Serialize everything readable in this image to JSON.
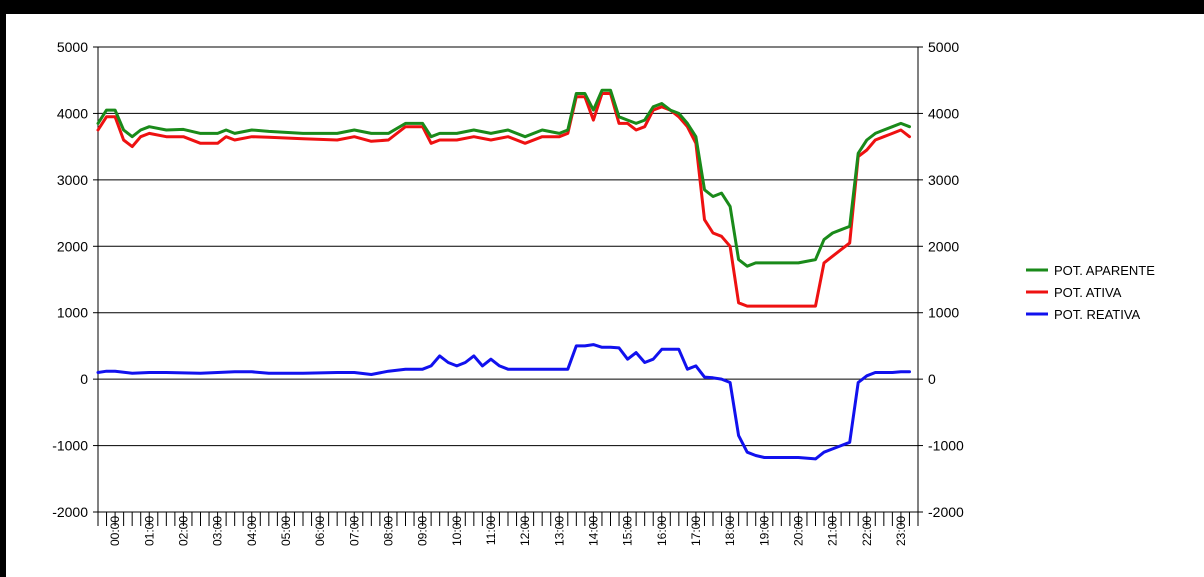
{
  "chart_data": {
    "type": "line",
    "title": "",
    "xlabel": "",
    "ylabel": "",
    "ylim": [
      -2000,
      5000
    ],
    "yticks": [
      -2000,
      -1000,
      0,
      1000,
      2000,
      3000,
      4000,
      5000
    ],
    "xlim": [
      0,
      24
    ],
    "xtick_labels": [
      "00:00",
      "01:00",
      "02:00",
      "03:00",
      "04:00",
      "05:00",
      "06:00",
      "07:00",
      "08:00",
      "09:00",
      "10:00",
      "11:00",
      "12:00",
      "13:00",
      "14:00",
      "15:00",
      "16:00",
      "17:00",
      "18:00",
      "19:00",
      "20:00",
      "21:00",
      "22:00",
      "23:00"
    ],
    "grid": "horizontal",
    "dual_y_axis": true,
    "legend_position": "right",
    "series": [
      {
        "name": "POT. APARENTE",
        "color": "#1a8a1a",
        "x": [
          0,
          0.25,
          0.5,
          0.75,
          1.0,
          1.25,
          1.5,
          2.0,
          2.5,
          3.0,
          3.5,
          3.75,
          4.0,
          4.5,
          5.0,
          6.0,
          7.0,
          7.5,
          8.0,
          8.5,
          9.0,
          9.25,
          9.5,
          9.75,
          10.0,
          10.5,
          11.0,
          11.5,
          12.0,
          12.5,
          13.0,
          13.5,
          13.75,
          14.0,
          14.25,
          14.5,
          14.75,
          15.0,
          15.25,
          15.5,
          15.75,
          16.0,
          16.25,
          16.5,
          16.75,
          17.0,
          17.25,
          17.5,
          17.75,
          18.0,
          18.25,
          18.5,
          18.75,
          19.0,
          19.25,
          19.5,
          20.0,
          20.5,
          21.0,
          21.25,
          21.5,
          21.75,
          22.0,
          22.25,
          22.5,
          22.75,
          23.0,
          23.25,
          23.5,
          23.75
        ],
        "y": [
          3850,
          4050,
          4050,
          3750,
          3650,
          3750,
          3800,
          3750,
          3760,
          3700,
          3700,
          3750,
          3700,
          3750,
          3730,
          3700,
          3700,
          3750,
          3700,
          3700,
          3850,
          3850,
          3850,
          3650,
          3700,
          3700,
          3750,
          3700,
          3750,
          3650,
          3750,
          3700,
          3750,
          4300,
          4300,
          4050,
          4350,
          4350,
          3950,
          3900,
          3850,
          3900,
          4100,
          4150,
          4050,
          4000,
          3850,
          3650,
          2850,
          2750,
          2800,
          2600,
          1800,
          1700,
          1750,
          1750,
          1750,
          1750,
          1800,
          2100,
          2200,
          2250,
          2300,
          3400,
          3600,
          3700,
          3750,
          3800,
          3850,
          3800
        ]
      },
      {
        "name": "POT. ATIVA",
        "color": "#ee1111",
        "x": [
          0,
          0.25,
          0.5,
          0.75,
          1.0,
          1.25,
          1.5,
          2.0,
          2.5,
          3.0,
          3.5,
          3.75,
          4.0,
          4.5,
          5.0,
          6.0,
          7.0,
          7.5,
          8.0,
          8.5,
          9.0,
          9.25,
          9.5,
          9.75,
          10.0,
          10.5,
          11.0,
          11.5,
          12.0,
          12.5,
          13.0,
          13.5,
          13.75,
          14.0,
          14.25,
          14.5,
          14.75,
          15.0,
          15.25,
          15.5,
          15.75,
          16.0,
          16.25,
          16.5,
          16.75,
          17.0,
          17.25,
          17.5,
          17.75,
          18.0,
          18.25,
          18.5,
          18.75,
          19.0,
          19.25,
          19.5,
          20.0,
          20.5,
          21.0,
          21.25,
          21.5,
          21.75,
          22.0,
          22.25,
          22.5,
          22.75,
          23.0,
          23.25,
          23.5,
          23.75
        ],
        "y": [
          3750,
          3950,
          3950,
          3600,
          3500,
          3650,
          3700,
          3650,
          3650,
          3550,
          3550,
          3650,
          3600,
          3650,
          3640,
          3620,
          3600,
          3650,
          3580,
          3600,
          3800,
          3800,
          3800,
          3550,
          3600,
          3600,
          3650,
          3600,
          3650,
          3550,
          3650,
          3650,
          3700,
          4250,
          4250,
          3900,
          4300,
          4300,
          3850,
          3850,
          3750,
          3800,
          4050,
          4100,
          4050,
          3950,
          3800,
          3550,
          2400,
          2200,
          2150,
          2000,
          1150,
          1100,
          1100,
          1100,
          1100,
          1100,
          1100,
          1750,
          1850,
          1950,
          2050,
          3350,
          3450,
          3600,
          3650,
          3700,
          3750,
          3650
        ]
      },
      {
        "name": "POT. REATIVA",
        "color": "#1111ee",
        "x": [
          0,
          0.25,
          0.5,
          1.0,
          1.5,
          2.0,
          3.0,
          4.0,
          4.5,
          5.0,
          6.0,
          7.0,
          7.5,
          8.0,
          8.5,
          9.0,
          9.5,
          9.75,
          10.0,
          10.25,
          10.5,
          10.75,
          11.0,
          11.25,
          11.5,
          11.75,
          12.0,
          12.5,
          13.0,
          13.5,
          13.75,
          14.0,
          14.25,
          14.5,
          14.75,
          15.0,
          15.25,
          15.5,
          15.75,
          16.0,
          16.25,
          16.5,
          16.75,
          17.0,
          17.25,
          17.5,
          17.75,
          18.0,
          18.25,
          18.5,
          18.75,
          19.0,
          19.25,
          19.5,
          20.0,
          20.5,
          21.0,
          21.25,
          21.5,
          21.75,
          22.0,
          22.25,
          22.5,
          22.75,
          23.0,
          23.25,
          23.5,
          23.75
        ],
        "y": [
          100,
          120,
          120,
          90,
          100,
          100,
          90,
          110,
          110,
          90,
          90,
          100,
          100,
          70,
          120,
          150,
          150,
          200,
          350,
          250,
          200,
          250,
          350,
          200,
          300,
          200,
          150,
          150,
          150,
          150,
          150,
          500,
          500,
          520,
          480,
          480,
          470,
          300,
          400,
          250,
          300,
          450,
          450,
          450,
          150,
          200,
          30,
          20,
          0,
          -50,
          -850,
          -1100,
          -1150,
          -1180,
          -1180,
          -1180,
          -1200,
          -1100,
          -1050,
          -1000,
          -950,
          -50,
          50,
          100,
          100,
          100,
          110,
          110
        ]
      }
    ]
  }
}
